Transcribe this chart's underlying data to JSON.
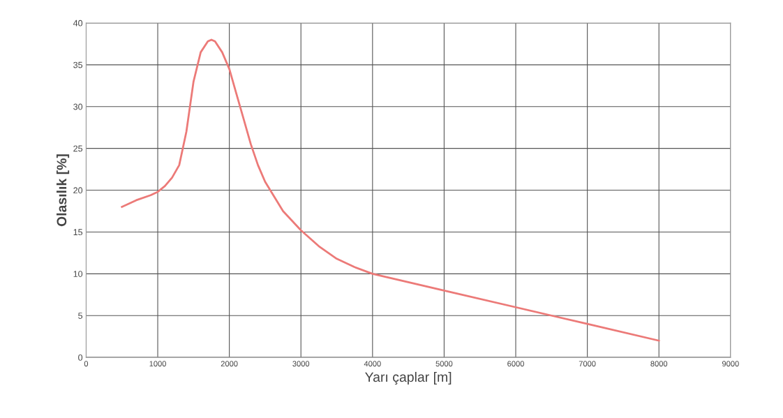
{
  "chart_data": {
    "type": "line",
    "xlabel": "Yarı çaplar [m]",
    "ylabel": "Olasılık [%]",
    "series": [
      {
        "color": "#ec7a78",
        "x": [
          500,
          700,
          900,
          1000,
          1100,
          1200,
          1300,
          1400,
          1500,
          1600,
          1700,
          1750,
          1800,
          1900,
          2000,
          2100,
          2200,
          2300,
          2400,
          2500,
          2750,
          3000,
          3250,
          3500,
          3750,
          4000,
          5000,
          6000,
          6500,
          7000,
          8000
        ],
        "values": [
          18,
          18.8,
          19.4,
          19.8,
          20.5,
          21.5,
          23,
          27,
          33,
          36.5,
          37.8,
          38,
          37.8,
          36.5,
          34.5,
          31.5,
          28.5,
          25.5,
          23,
          21,
          17.5,
          15.2,
          13.3,
          11.8,
          10.8,
          10,
          8,
          6,
          5,
          4,
          2
        ]
      }
    ],
    "xlim": [
      0,
      9000
    ],
    "xticks": [
      0,
      1000,
      2000,
      3000,
      4000,
      5000,
      6000,
      7000,
      8000,
      9000
    ],
    "ylim": [
      0,
      40
    ],
    "yticks": [
      0,
      5,
      10,
      15,
      20,
      25,
      30,
      35,
      40
    ],
    "grid": true,
    "marker": "none",
    "line_style": "solid"
  }
}
